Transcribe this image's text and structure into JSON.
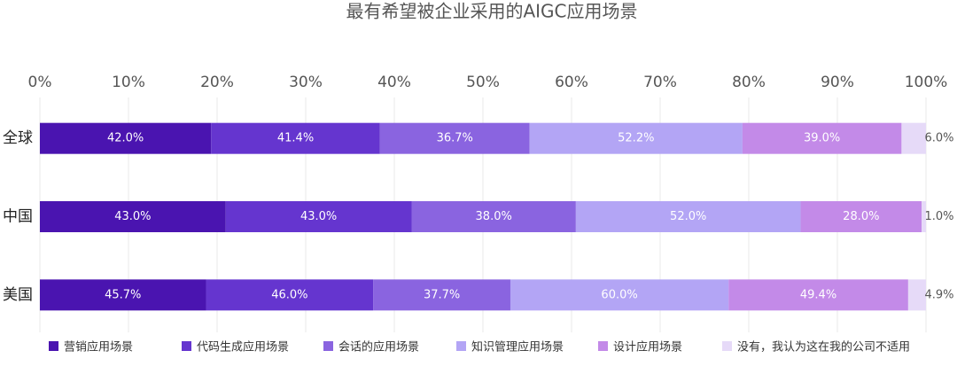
{
  "chart_data": {
    "type": "bar",
    "orientation": "horizontal",
    "stacked": "percent",
    "title": "最有希望被企业采用的AIGC应用场景",
    "categories": [
      "全球",
      "中国",
      "美国"
    ],
    "xlim": [
      0,
      100
    ],
    "xticks": [
      {
        "value": 0,
        "label": "0%"
      },
      {
        "value": 10,
        "label": "10%"
      },
      {
        "value": 20,
        "label": "20%"
      },
      {
        "value": 30,
        "label": "30%"
      },
      {
        "value": 40,
        "label": "40%"
      },
      {
        "value": 50,
        "label": "50%"
      },
      {
        "value": 60,
        "label": "60%"
      },
      {
        "value": 70,
        "label": "70%"
      },
      {
        "value": 80,
        "label": "80%"
      },
      {
        "value": 90,
        "label": "90%"
      },
      {
        "value": 100,
        "label": "100%"
      }
    ],
    "grid": true,
    "legend": "bottom",
    "series": [
      {
        "name": "营销应用场景",
        "color": "#4a14b0",
        "values": [
          42.0,
          43.0,
          45.7
        ],
        "value_labels": [
          "42.0%",
          "43.0%",
          "45.7%"
        ]
      },
      {
        "name": "代码生成应用场景",
        "color": "#6535cf",
        "values": [
          41.4,
          43.0,
          46.0
        ],
        "value_labels": [
          "41.4%",
          "43.0%",
          "46.0%"
        ]
      },
      {
        "name": "会话的应用场景",
        "color": "#8a64e0",
        "values": [
          36.7,
          38.0,
          37.7
        ],
        "value_labels": [
          "36.7%",
          "38.0%",
          "37.7%"
        ]
      },
      {
        "name": "知识管理应用场景",
        "color": "#b3a5f5",
        "values": [
          52.2,
          52.0,
          60.0
        ],
        "value_labels": [
          "52.2%",
          "52.0%",
          "60.0%"
        ]
      },
      {
        "name": "设计应用场景",
        "color": "#c38ae8",
        "values": [
          39.0,
          28.0,
          49.4
        ],
        "value_labels": [
          "39.0%",
          "28.0%",
          "49.4%"
        ]
      },
      {
        "name": "没有，我认为这在我的公司不适用",
        "color": "#e6daf8",
        "values": [
          6.0,
          1.0,
          4.9
        ],
        "value_labels": [
          "6.0%",
          "1.0%",
          "4.9%"
        ]
      }
    ]
  }
}
